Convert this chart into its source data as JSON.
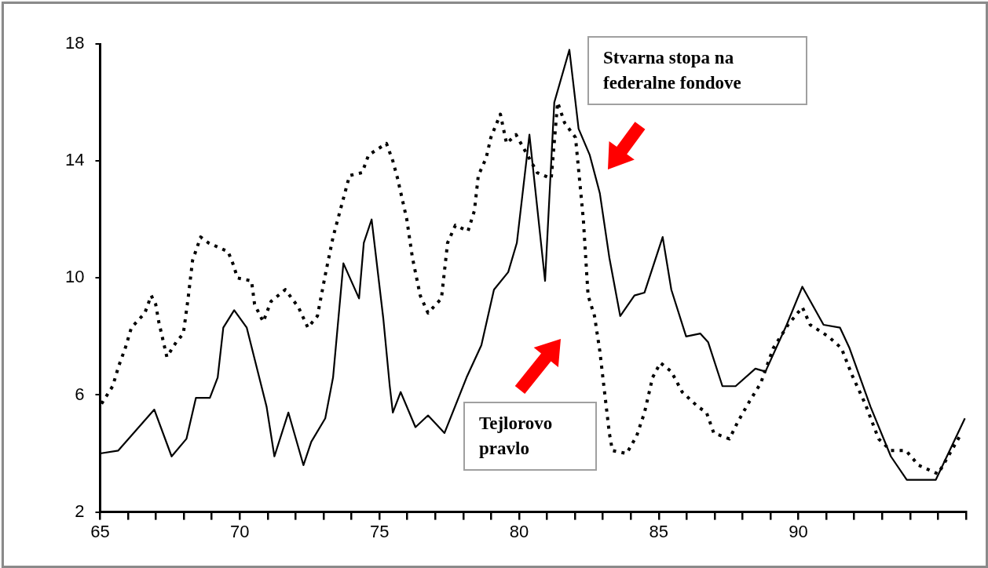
{
  "chart_data": {
    "type": "line",
    "xlim": [
      65,
      96
    ],
    "xticks": [
      65,
      {
        "value": 66,
        "label": null
      },
      {
        "value": 67,
        "label": null
      },
      {
        "value": 68,
        "label": null
      },
      {
        "value": 69,
        "label": null
      },
      70,
      {
        "value": 71,
        "label": null
      },
      {
        "value": 72,
        "label": null
      },
      {
        "value": 73,
        "label": null
      },
      {
        "value": 74,
        "label": null
      },
      75,
      {
        "value": 76,
        "label": null
      },
      {
        "value": 77,
        "label": null
      },
      {
        "value": 78,
        "label": null
      },
      {
        "value": 79,
        "label": null
      },
      80,
      {
        "value": 81,
        "label": null
      },
      {
        "value": 82,
        "label": null
      },
      {
        "value": 83,
        "label": null
      },
      {
        "value": 84,
        "label": null
      },
      85,
      {
        "value": 86,
        "label": null
      },
      {
        "value": 87,
        "label": null
      },
      {
        "value": 88,
        "label": null
      },
      {
        "value": 89,
        "label": null
      },
      90,
      {
        "value": 91,
        "label": null
      },
      {
        "value": 92,
        "label": null
      },
      {
        "value": 93,
        "label": null
      },
      {
        "value": 94,
        "label": null
      },
      {
        "value": 95,
        "label": null
      },
      {
        "value": 96,
        "label": null
      }
    ],
    "ylim": [
      2,
      18
    ],
    "yticks": [
      2,
      6,
      10,
      14,
      18
    ],
    "grid": false,
    "legend": false,
    "marker": "none",
    "annotations": [
      "Stvarna stopa na federalne fondove",
      "Tejlorovo pravlo"
    ],
    "series": [
      {
        "color": "#000000",
        "line_style": "solid",
        "x": [
          65.0,
          65.65,
          66.94,
          67.56,
          68.09,
          68.43,
          68.93,
          69.21,
          69.41,
          69.8,
          70.25,
          70.96,
          71.24,
          71.74,
          72.28,
          72.56,
          73.06,
          73.34,
          73.71,
          74.27,
          74.44,
          74.72,
          75.14,
          75.37,
          75.48,
          75.76,
          76.29,
          76.74,
          77.33,
          78.12,
          78.65,
          79.1,
          79.61,
          79.92,
          80.37,
          80.93,
          81.26,
          81.8,
          82.13,
          82.53,
          82.89,
          83.23,
          83.62,
          84.13,
          84.49,
          85.14,
          85.45,
          85.98,
          86.49,
          86.77,
          87.28,
          87.75,
          88.46,
          88.82,
          89.58,
          90.14,
          90.9,
          91.49,
          91.83,
          92.58,
          93.31,
          93.88,
          94.92,
          95.96
        ],
        "values": [
          4.0,
          4.1,
          5.5,
          3.9,
          4.5,
          5.9,
          5.9,
          6.6,
          8.3,
          8.9,
          8.3,
          5.6,
          3.9,
          5.4,
          3.6,
          4.4,
          5.2,
          6.6,
          10.5,
          9.3,
          11.2,
          12.0,
          8.6,
          6.3,
          5.4,
          6.1,
          4.9,
          5.3,
          4.7,
          6.6,
          7.7,
          9.6,
          10.2,
          11.2,
          14.9,
          9.9,
          16.0,
          17.8,
          15.1,
          14.2,
          12.9,
          10.7,
          8.7,
          9.4,
          9.5,
          11.4,
          9.6,
          8.0,
          8.1,
          7.8,
          6.3,
          6.3,
          6.9,
          6.8,
          8.4,
          9.7,
          8.4,
          8.3,
          7.6,
          5.6,
          3.9,
          3.1,
          3.1,
          5.2
        ]
      },
      {
        "color": "#000000",
        "line_style": "dotted",
        "x": [
          65.05,
          65.45,
          65.67,
          65.9,
          66.12,
          66.6,
          66.83,
          66.99,
          67.1,
          67.39,
          67.72,
          67.98,
          68.15,
          68.31,
          68.6,
          68.88,
          69.58,
          69.75,
          69.92,
          70.42,
          70.53,
          70.84,
          71.12,
          71.63,
          72.1,
          72.44,
          72.78,
          73.06,
          73.34,
          73.93,
          74.38,
          74.61,
          75.25,
          75.48,
          75.65,
          75.98,
          76.18,
          76.46,
          76.74,
          77.22,
          77.44,
          77.72,
          78.17,
          78.4,
          78.54,
          78.82,
          78.99,
          79.33,
          79.55,
          79.89,
          80.65,
          81.15,
          81.38,
          81.63,
          82.02,
          82.16,
          82.3,
          82.47,
          82.7,
          82.89,
          83.06,
          83.23,
          83.34,
          83.85,
          84.21,
          84.49,
          84.78,
          85.06,
          85.45,
          85.84,
          86.4,
          86.71,
          86.97,
          87.53,
          87.84,
          88.26,
          88.65,
          89.1,
          89.63,
          90.14,
          90.42,
          91.07,
          91.54,
          91.91,
          92.39,
          92.87,
          93.31,
          93.85,
          94.3,
          95.0,
          95.84
        ],
        "values": [
          5.7,
          6.3,
          7.0,
          7.6,
          8.3,
          8.8,
          9.4,
          9.1,
          8.5,
          7.3,
          7.8,
          8.1,
          9.3,
          10.6,
          11.4,
          11.2,
          10.9,
          10.5,
          10.0,
          9.9,
          9.1,
          8.5,
          9.2,
          9.6,
          9.0,
          8.3,
          8.7,
          10.1,
          11.4,
          13.5,
          13.6,
          14.2,
          14.6,
          14.0,
          13.4,
          12.0,
          10.7,
          9.4,
          8.8,
          9.3,
          11.2,
          11.8,
          11.6,
          12.3,
          13.5,
          14.1,
          14.8,
          15.6,
          14.6,
          14.9,
          13.6,
          13.4,
          16.0,
          15.3,
          14.8,
          13.4,
          12.0,
          9.4,
          8.7,
          7.5,
          6.1,
          4.7,
          4.1,
          4.0,
          4.6,
          5.4,
          6.6,
          7.1,
          6.8,
          6.1,
          5.6,
          5.4,
          4.7,
          4.5,
          5.1,
          5.8,
          6.4,
          7.6,
          8.4,
          9.0,
          8.4,
          8.0,
          7.6,
          6.7,
          5.7,
          4.5,
          4.1,
          4.1,
          3.6,
          3.3,
          4.7
        ]
      }
    ]
  }
}
